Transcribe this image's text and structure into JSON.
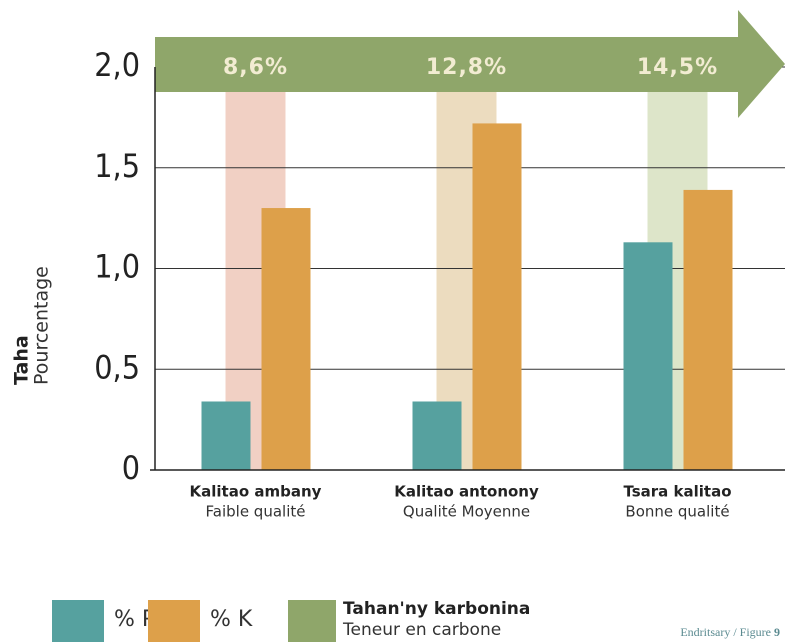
{
  "chart_data": {
    "type": "bar",
    "categories": [
      "Kalitao ambany",
      "Kalitao antonony",
      "Tsara kalitao"
    ],
    "category_subtitles": [
      "Faible qualité",
      "Qualité Moyenne",
      "Bonne qualité"
    ],
    "series": [
      {
        "name": "% P",
        "color": "#56a19f",
        "values": [
          0.34,
          0.34,
          1.13
        ]
      },
      {
        "name": "% K",
        "color": "#dda04a",
        "values": [
          1.3,
          1.72,
          1.39
        ]
      }
    ],
    "carbon": {
      "name": "Tahan'ny karbonina",
      "subtitle": "Teneur en carbone",
      "color": "#8fa66a",
      "values": [
        8.6,
        12.8,
        14.5
      ],
      "value_labels": [
        "8,6%",
        "12,8%",
        "14,5%"
      ],
      "band_colors": [
        "#f1d0c4",
        "#ecdcbf",
        "#dde5c9"
      ]
    },
    "y_label": "Taha",
    "y_sublabel": "Pourcentage",
    "ylim": [
      0,
      2
    ],
    "yticks": [
      0,
      {
        "value": 0.5,
        "label": "0,5"
      },
      {
        "value": 1,
        "label": "1,0"
      },
      {
        "value": 1.5,
        "label": "1,5"
      },
      {
        "value": 2,
        "label": "2,0"
      }
    ],
    "grid": true,
    "credit": "Endritsary / Figure",
    "figure_number": "9"
  }
}
